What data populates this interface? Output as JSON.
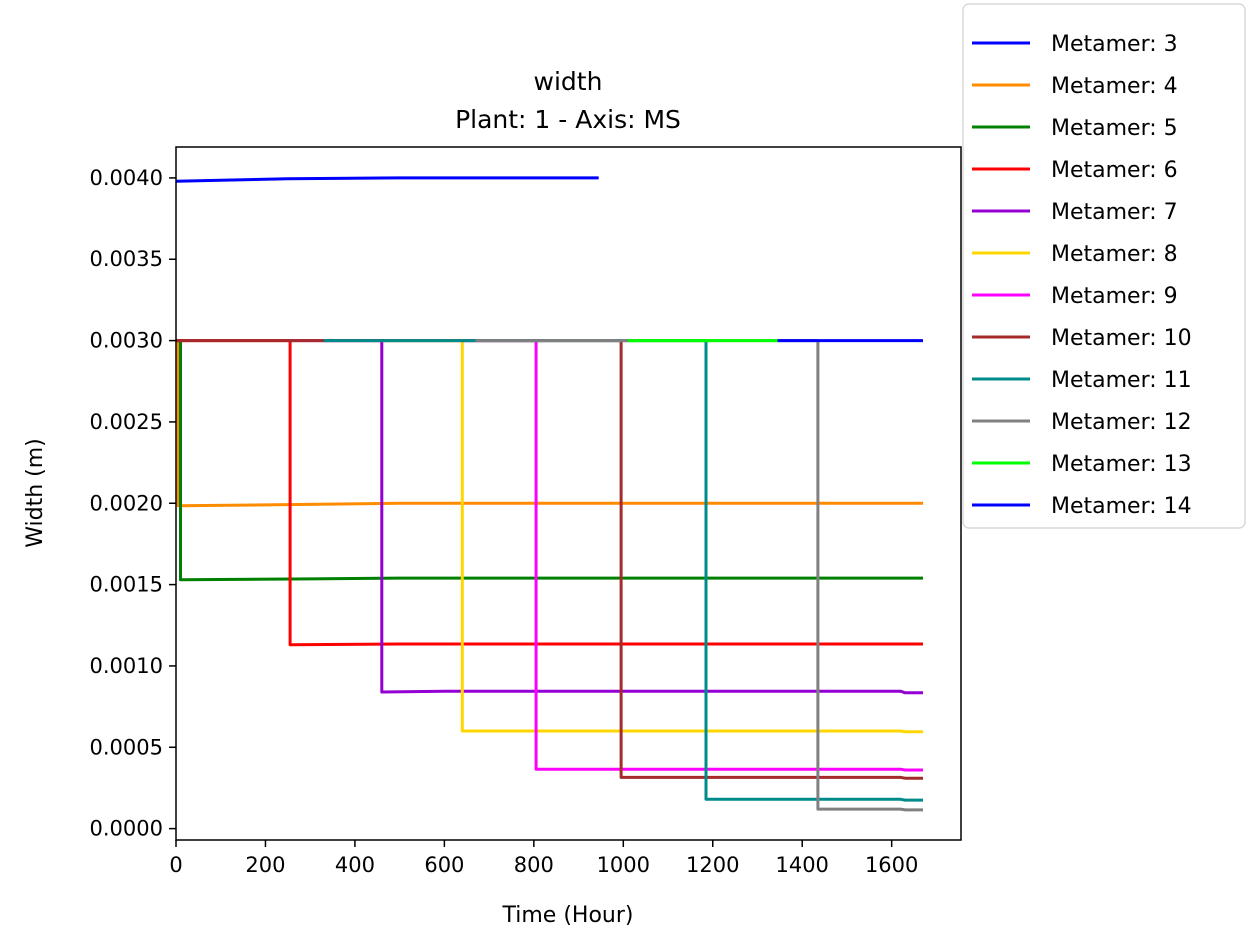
{
  "chart_data": {
    "type": "line",
    "title": "width",
    "subtitle": "Plant: 1 - Axis: MS",
    "xlabel": "Time (Hour)",
    "ylabel": "Width (m)",
    "xlim": [
      0,
      1755
    ],
    "ylim": [
      -7e-05,
      0.00419
    ],
    "xticks": [
      0,
      200,
      400,
      600,
      800,
      1000,
      1200,
      1400,
      1600
    ],
    "xtick_labels": [
      "0",
      "200",
      "400",
      "600",
      "800",
      "1000",
      "1200",
      "1400",
      "1600"
    ],
    "yticks": [
      0.0,
      0.0005,
      0.001,
      0.0015,
      0.002,
      0.0025,
      0.003,
      0.0035,
      0.004
    ],
    "ytick_labels": [
      "0.0000",
      "0.0005",
      "0.0010",
      "0.0015",
      "0.0020",
      "0.0025",
      "0.0030",
      "0.0035",
      "0.0040"
    ],
    "grid": false,
    "legend_position": "outside-top-right",
    "series": [
      {
        "name": "Metamer: 3",
        "color": "#0000ff",
        "points": [
          [
            0,
            0.00398
          ],
          [
            100,
            0.003985
          ],
          [
            250,
            0.003995
          ],
          [
            500,
            0.004
          ],
          [
            945,
            0.004
          ]
        ]
      },
      {
        "name": "Metamer: 4",
        "color": "#ff8c00",
        "points": [
          [
            0,
            0.003
          ],
          [
            5,
            0.003
          ],
          [
            5,
            0.001985
          ],
          [
            200,
            0.00199
          ],
          [
            500,
            0.002
          ],
          [
            1670,
            0.002
          ]
        ]
      },
      {
        "name": "Metamer: 5",
        "color": "#008000",
        "points": [
          [
            0,
            0.003
          ],
          [
            10,
            0.003
          ],
          [
            10,
            0.00153
          ],
          [
            300,
            0.001535
          ],
          [
            500,
            0.00154
          ],
          [
            1670,
            0.00154
          ]
        ]
      },
      {
        "name": "Metamer: 6",
        "color": "#ff0000",
        "points": [
          [
            0,
            0.003
          ],
          [
            255,
            0.003
          ],
          [
            255,
            0.00113
          ],
          [
            500,
            0.001135
          ],
          [
            1670,
            0.001135
          ]
        ]
      },
      {
        "name": "Metamer: 7",
        "color": "#9400d3",
        "points": [
          [
            255,
            0.003
          ],
          [
            460,
            0.003
          ],
          [
            460,
            0.00084
          ],
          [
            600,
            0.000845
          ],
          [
            1620,
            0.000845
          ],
          [
            1630,
            0.000835
          ],
          [
            1670,
            0.000835
          ]
        ]
      },
      {
        "name": "Metamer: 8",
        "color": "#ffd700",
        "points": [
          [
            460,
            0.003
          ],
          [
            640,
            0.003
          ],
          [
            640,
            0.0006
          ],
          [
            1620,
            0.0006
          ],
          [
            1630,
            0.000595
          ],
          [
            1670,
            0.000595
          ]
        ]
      },
      {
        "name": "Metamer: 9",
        "color": "#ff00ff",
        "points": [
          [
            640,
            0.003
          ],
          [
            805,
            0.003
          ],
          [
            805,
            0.000365
          ],
          [
            1620,
            0.000365
          ],
          [
            1630,
            0.00036
          ],
          [
            1670,
            0.00036
          ]
        ]
      },
      {
        "name": "Metamer: 10",
        "color": "#a52a2a",
        "points": [
          [
            0,
            0.003
          ],
          [
            330,
            0.003
          ],
          [
            805,
            0.003
          ],
          [
            995,
            0.003
          ],
          [
            995,
            0.000315
          ],
          [
            1620,
            0.000315
          ],
          [
            1630,
            0.00031
          ],
          [
            1670,
            0.00031
          ]
        ]
      },
      {
        "name": "Metamer: 11",
        "color": "#008b8b",
        "points": [
          [
            330,
            0.003
          ],
          [
            670,
            0.003
          ],
          [
            995,
            0.003
          ],
          [
            1185,
            0.003
          ],
          [
            1185,
            0.00018
          ],
          [
            1620,
            0.00018
          ],
          [
            1630,
            0.000175
          ],
          [
            1670,
            0.000175
          ]
        ]
      },
      {
        "name": "Metamer: 12",
        "color": "#808080",
        "points": [
          [
            670,
            0.003
          ],
          [
            1010,
            0.003
          ],
          [
            1185,
            0.003
          ],
          [
            1435,
            0.003
          ],
          [
            1435,
            0.00012
          ],
          [
            1620,
            0.00012
          ],
          [
            1630,
            0.000115
          ],
          [
            1670,
            0.000115
          ]
        ]
      },
      {
        "name": "Metamer: 13",
        "color": "#00ff00",
        "points": [
          [
            1010,
            0.003
          ],
          [
            1345,
            0.003
          ]
        ]
      },
      {
        "name": "Metamer: 14",
        "color": "#0000ff",
        "points": [
          [
            1345,
            0.003
          ],
          [
            1670,
            0.003
          ]
        ]
      }
    ]
  }
}
